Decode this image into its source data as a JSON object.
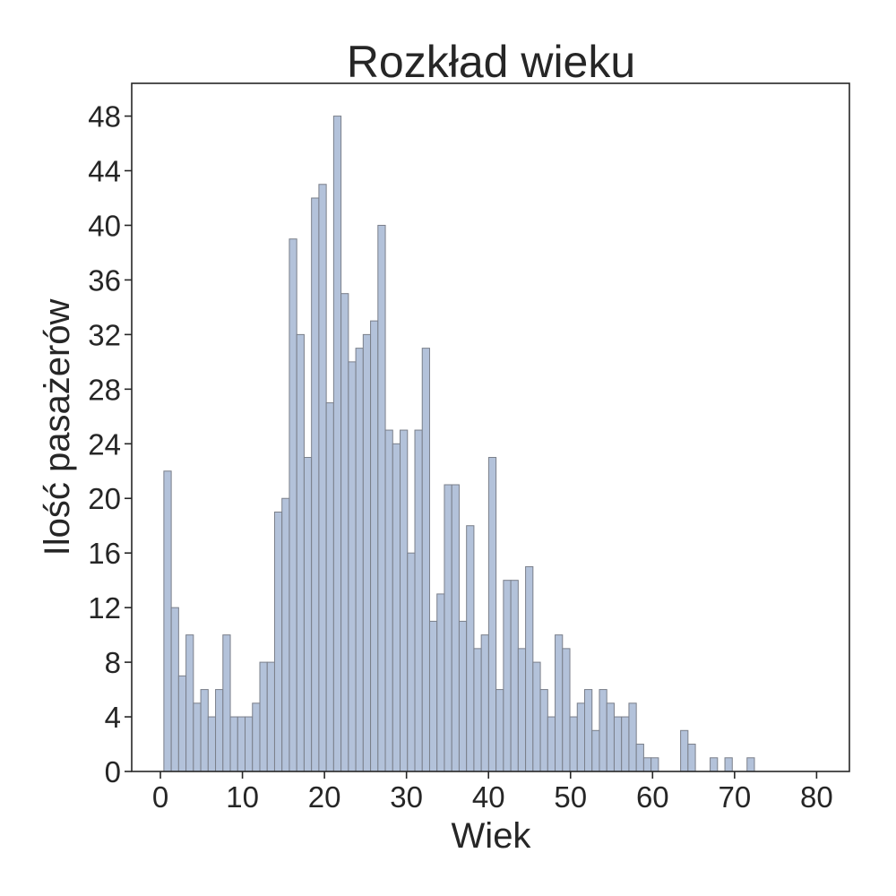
{
  "chart_data": {
    "type": "bar",
    "subtype": "histogram",
    "title": "Rozkład wieku",
    "xlabel": "Wiek",
    "ylabel": "Ilość pasażerów",
    "bin_width": 0.9,
    "bin_start": 0.42,
    "xlim": [
      -3.5,
      84.0
    ],
    "ylim": [
      0,
      50.4
    ],
    "xticks": [
      "0",
      "10",
      "20",
      "30",
      "40",
      "50",
      "60",
      "70",
      "80"
    ],
    "yticks": [
      "0",
      "4",
      "8",
      "12",
      "16",
      "20",
      "24",
      "28",
      "32",
      "36",
      "40",
      "44",
      "48"
    ],
    "values": [
      22,
      12,
      7,
      10,
      5,
      6,
      4,
      6,
      10,
      4,
      4,
      4,
      5,
      8,
      8,
      19,
      20,
      39,
      32,
      23,
      42,
      43,
      27,
      48,
      35,
      30,
      31,
      32,
      33,
      40,
      25,
      24,
      25,
      16,
      25,
      31,
      11,
      13,
      21,
      21,
      11,
      18,
      9,
      10,
      23,
      6,
      14,
      14,
      9,
      15,
      8,
      6,
      4,
      10,
      9,
      4,
      5,
      6,
      3,
      6,
      5,
      4,
      4,
      5,
      2,
      1,
      1,
      0,
      0,
      0,
      3,
      2,
      0,
      0,
      1,
      0,
      1,
      0,
      0,
      1
    ],
    "grid": false,
    "bar_color": "#b3c2da",
    "edge_color": "#7a7f8a"
  }
}
